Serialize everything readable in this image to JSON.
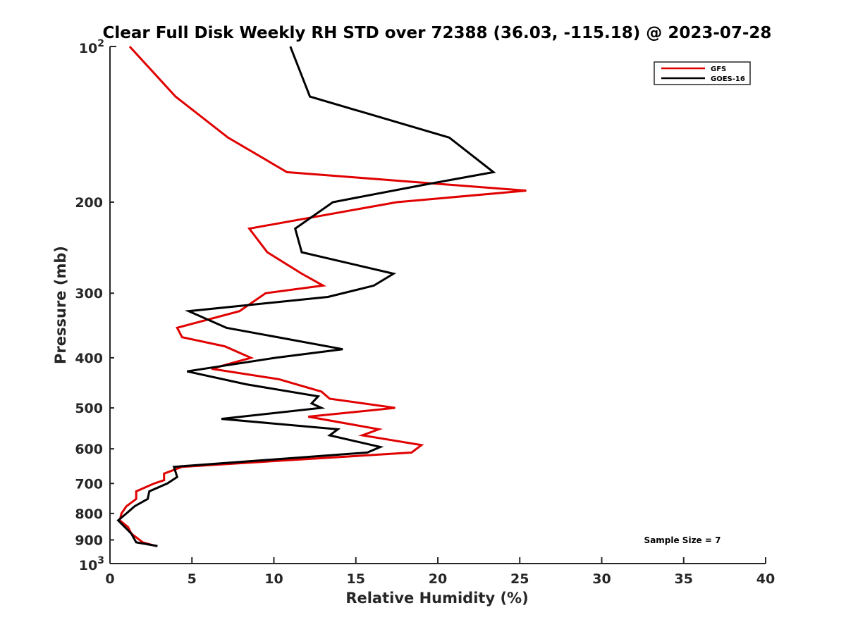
{
  "chart_data": {
    "type": "line",
    "title": "Clear Full Disk Weekly RH STD over 72388 (36.03, -115.18) @ 2023-07-28",
    "xlabel": "Relative Humidity (%)",
    "ylabel": "Pressure (mb)",
    "xlim": [
      0,
      40
    ],
    "ylim": [
      100,
      1000
    ],
    "y_scale": "log",
    "y_reversed": true,
    "x_ticks": [
      0,
      5,
      10,
      15,
      20,
      25,
      30,
      35,
      40
    ],
    "x_tick_labels": [
      "0",
      "5",
      "10",
      "15",
      "20",
      "25",
      "30",
      "35",
      "40"
    ],
    "y_ticks": [
      200,
      300,
      400,
      500,
      600,
      700,
      800,
      900
    ],
    "y_tick_labels": [
      "200",
      "300",
      "400",
      "500",
      "600",
      "700",
      "800",
      "900"
    ],
    "y_ends": [
      {
        "value": 100,
        "base": "10",
        "exp": "2"
      },
      {
        "value": 1000,
        "base": "10",
        "exp": "3"
      }
    ],
    "grid": false,
    "legend_position": "top-right",
    "series": [
      {
        "name": "GFS",
        "color": "#e00000",
        "points": [
          [
            1.2,
            100
          ],
          [
            4.0,
            125
          ],
          [
            7.2,
            150
          ],
          [
            10.8,
            175
          ],
          [
            25.4,
            190
          ],
          [
            17.5,
            200
          ],
          [
            8.5,
            225
          ],
          [
            9.6,
            250
          ],
          [
            11.7,
            275
          ],
          [
            13.0,
            290
          ],
          [
            9.5,
            300
          ],
          [
            7.9,
            325
          ],
          [
            4.1,
            350
          ],
          [
            4.4,
            365
          ],
          [
            7.0,
            380
          ],
          [
            8.6,
            400
          ],
          [
            6.2,
            420
          ],
          [
            10.3,
            440
          ],
          [
            12.9,
            465
          ],
          [
            13.4,
            480
          ],
          [
            17.4,
            500
          ],
          [
            12.1,
            520
          ],
          [
            16.4,
            550
          ],
          [
            15.4,
            565
          ],
          [
            19.0,
            590
          ],
          [
            18.4,
            610
          ],
          [
            4.4,
            650
          ],
          [
            3.3,
            670
          ],
          [
            3.3,
            690
          ],
          [
            2.7,
            700
          ],
          [
            1.6,
            725
          ],
          [
            1.6,
            750
          ],
          [
            1.0,
            775
          ],
          [
            0.7,
            800
          ],
          [
            0.6,
            825
          ],
          [
            1.1,
            850
          ],
          [
            1.3,
            875
          ],
          [
            2.0,
            910
          ],
          [
            2.8,
            925
          ]
        ]
      },
      {
        "name": "GOES-16",
        "color": "#000000",
        "points": [
          [
            11.0,
            100
          ],
          [
            12.2,
            125
          ],
          [
            20.7,
            150
          ],
          [
            23.4,
            175
          ],
          [
            19.2,
            185
          ],
          [
            13.6,
            200
          ],
          [
            11.3,
            225
          ],
          [
            11.7,
            250
          ],
          [
            17.3,
            275
          ],
          [
            16.1,
            290
          ],
          [
            13.3,
            305
          ],
          [
            4.8,
            325
          ],
          [
            7.1,
            350
          ],
          [
            14.2,
            385
          ],
          [
            10.1,
            400
          ],
          [
            4.7,
            425
          ],
          [
            8.3,
            450
          ],
          [
            12.7,
            475
          ],
          [
            12.3,
            490
          ],
          [
            12.9,
            500
          ],
          [
            6.8,
            525
          ],
          [
            13.9,
            550
          ],
          [
            13.4,
            565
          ],
          [
            16.5,
            595
          ],
          [
            15.7,
            610
          ],
          [
            3.9,
            650
          ],
          [
            4.1,
            680
          ],
          [
            3.5,
            700
          ],
          [
            2.4,
            725
          ],
          [
            2.3,
            750
          ],
          [
            1.5,
            775
          ],
          [
            1.0,
            800
          ],
          [
            0.5,
            825
          ],
          [
            1.3,
            875
          ],
          [
            1.6,
            910
          ],
          [
            2.9,
            925
          ]
        ]
      }
    ],
    "annotations": [
      "Sample Size = 7"
    ]
  }
}
